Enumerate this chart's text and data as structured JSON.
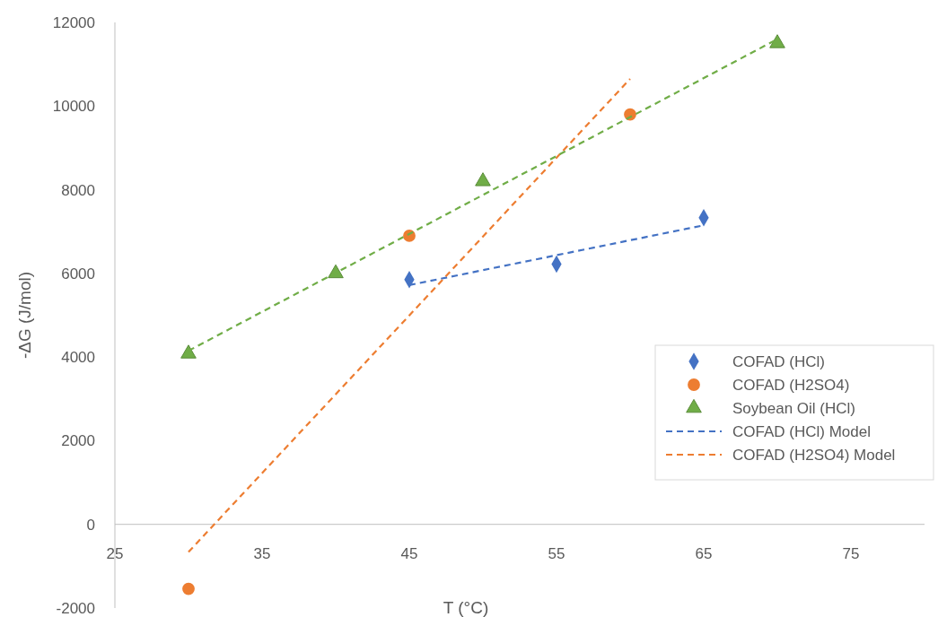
{
  "chart_data": {
    "type": "scatter",
    "xlabel": "T (°C)",
    "ylabel": "-ΔG (J/mol)",
    "xlim": [
      25,
      80
    ],
    "ylim": [
      -2000,
      12000
    ],
    "xticks": [
      25,
      35,
      45,
      55,
      65,
      75
    ],
    "yticks": [
      -2000,
      0,
      2000,
      4000,
      6000,
      8000,
      10000,
      12000
    ],
    "grid": false,
    "legend": "right",
    "series": [
      {
        "name": "COFAD (HCl)",
        "marker": "diamond",
        "color": "#4472c4",
        "x": [
          45,
          55,
          65
        ],
        "values": [
          5850,
          6220,
          7330
        ]
      },
      {
        "name": "COFAD (H2SO4)",
        "marker": "circle",
        "color": "#ed7d31",
        "x": [
          30,
          45,
          60
        ],
        "values": [
          -1540,
          6900,
          9800
        ]
      },
      {
        "name": "Soybean Oil (HCl)",
        "marker": "triangle",
        "color": "#70ad47",
        "x": [
          30,
          40,
          50,
          70
        ],
        "values": [
          4080,
          6000,
          8200,
          11500
        ]
      },
      {
        "name": "COFAD (HCl) Model",
        "type": "line",
        "line_style": "dashed",
        "marker": "none",
        "color": "#4472c4",
        "x": [
          45,
          65
        ],
        "values": [
          5720,
          7150
        ]
      },
      {
        "name": "COFAD (H2SO4) Model",
        "type": "line",
        "line_style": "dashed",
        "marker": "none",
        "color": "#ed7d31",
        "x": [
          30,
          60
        ],
        "values": [
          -660,
          10650
        ]
      },
      {
        "type": "line",
        "line_style": "dashed",
        "marker": "none",
        "color": "#70ad47",
        "x": [
          30,
          70
        ],
        "values": [
          4150,
          11600
        ]
      }
    ]
  }
}
